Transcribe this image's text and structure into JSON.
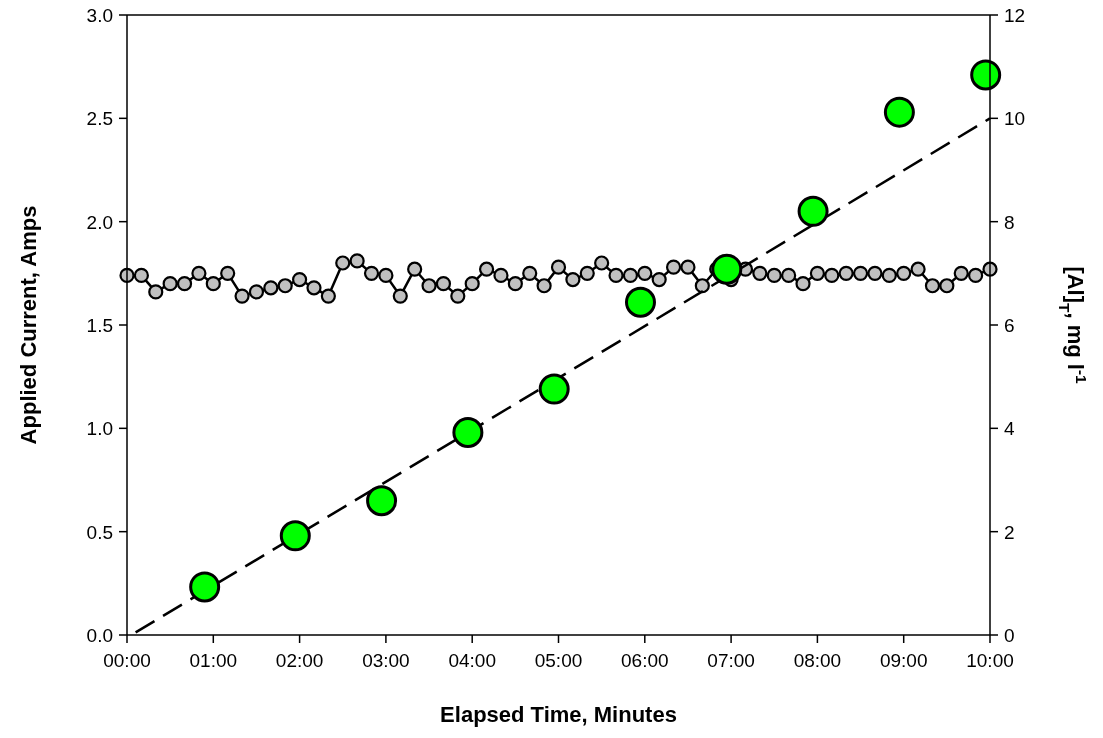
{
  "chart_data": {
    "type": "line",
    "xlabel": "Elapsed Time, Minutes",
    "ylabel": "Applied Current, Amps",
    "y2label": "[Al]$_{T}$, mg l$^{-1}$",
    "xlim": [
      0,
      10
    ],
    "xticks": [
      {
        "value": 0,
        "label": "00:00"
      },
      {
        "value": 1,
        "label": "01:00"
      },
      {
        "value": 2,
        "label": "02:00"
      },
      {
        "value": 3,
        "label": "03:00"
      },
      {
        "value": 4,
        "label": "04:00"
      },
      {
        "value": 5,
        "label": "05:00"
      },
      {
        "value": 6,
        "label": "06:00"
      },
      {
        "value": 7,
        "label": "07:00"
      },
      {
        "value": 8,
        "label": "08:00"
      },
      {
        "value": 9,
        "label": "09:00"
      },
      {
        "value": 10,
        "label": "10:00"
      }
    ],
    "ylim": [
      0,
      3
    ],
    "yticks": [
      {
        "value": 0,
        "label": "0.0"
      },
      {
        "value": 0.5,
        "label": "0.5"
      },
      {
        "value": 1,
        "label": "1.0"
      },
      {
        "value": 1.5,
        "label": "1.5"
      },
      {
        "value": 2,
        "label": "2.0"
      },
      {
        "value": 2.5,
        "label": "2.5"
      },
      {
        "value": 3,
        "label": "3.0"
      }
    ],
    "y2lim": [
      0,
      12
    ],
    "y2ticks": [
      0,
      2,
      4,
      6,
      8,
      10,
      12
    ],
    "grid": false,
    "series": [
      {
        "color": "#c0c0c0",
        "marker": "circle",
        "line_style": "solid",
        "x": [
          0,
          0.1667,
          0.3333,
          0.5,
          0.6667,
          0.8333,
          1,
          1.1667,
          1.3333,
          1.5,
          1.6667,
          1.8333,
          2,
          2.1667,
          2.3333,
          2.5,
          2.6667,
          2.8333,
          3,
          3.1667,
          3.3333,
          3.5,
          3.6667,
          3.8333,
          4,
          4.1667,
          4.3333,
          4.5,
          4.6667,
          4.8333,
          5,
          5.1667,
          5.3333,
          5.5,
          5.6667,
          5.8333,
          6,
          6.1667,
          6.3333,
          6.5,
          6.6667,
          6.8333,
          7,
          7.1667,
          7.3333,
          7.5,
          7.6667,
          7.8333,
          8,
          8.1667,
          8.3333,
          8.5,
          8.6667,
          8.8333,
          9,
          9.1667,
          9.3333,
          9.5,
          9.6667,
          9.8333,
          10
        ],
        "values": [
          1.74,
          1.74,
          1.66,
          1.7,
          1.7,
          1.75,
          1.7,
          1.75,
          1.64,
          1.66,
          1.68,
          1.69,
          1.72,
          1.68,
          1.64,
          1.8,
          1.81,
          1.75,
          1.74,
          1.64,
          1.77,
          1.69,
          1.7,
          1.64,
          1.7,
          1.77,
          1.74,
          1.7,
          1.75,
          1.69,
          1.78,
          1.72,
          1.75,
          1.8,
          1.74,
          1.74,
          1.75,
          1.72,
          1.78,
          1.78,
          1.69,
          1.77,
          1.72,
          1.77,
          1.75,
          1.74,
          1.74,
          1.7,
          1.75,
          1.74,
          1.75,
          1.75,
          1.75,
          1.74,
          1.75,
          1.77,
          1.69,
          1.69,
          1.75,
          1.74,
          1.77
        ]
      },
      {
        "type": "line",
        "axis": "y2",
        "color": "#000000",
        "marker": "none",
        "line_style": "dashed",
        "x": [
          0.1,
          10
        ],
        "values": [
          0.05,
          10
        ]
      },
      {
        "type": "scatter",
        "axis": "y2",
        "color": "#00ff00",
        "marker": "circle",
        "x": [
          0.9,
          1.95,
          2.95,
          3.95,
          4.95,
          5.95,
          6.95,
          7.95,
          8.95,
          9.95
        ],
        "values": [
          0.93,
          1.92,
          2.6,
          3.92,
          4.76,
          6.44,
          7.08,
          8.2,
          10.12,
          10.84
        ]
      }
    ]
  }
}
